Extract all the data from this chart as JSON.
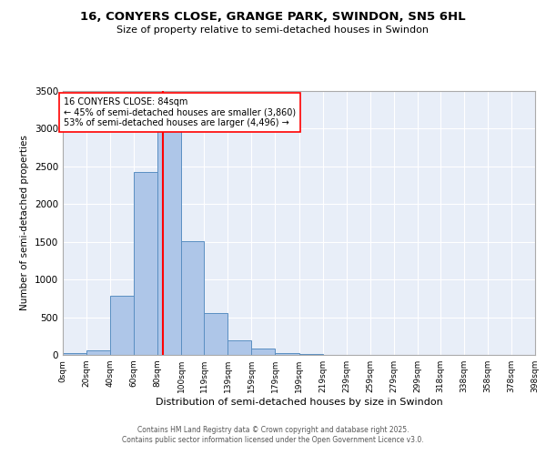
{
  "title_line1": "16, CONYERS CLOSE, GRANGE PARK, SWINDON, SN5 6HL",
  "title_line2": "Size of property relative to semi-detached houses in Swindon",
  "xlabel": "Distribution of semi-detached houses by size in Swindon",
  "ylabel": "Number of semi-detached properties",
  "bin_labels": [
    "0sqm",
    "20sqm",
    "40sqm",
    "60sqm",
    "80sqm",
    "100sqm",
    "119sqm",
    "139sqm",
    "159sqm",
    "179sqm",
    "199sqm",
    "219sqm",
    "239sqm",
    "259sqm",
    "279sqm",
    "299sqm",
    "318sqm",
    "338sqm",
    "358sqm",
    "378sqm",
    "398sqm"
  ],
  "bar_values": [
    20,
    60,
    780,
    2430,
    3000,
    1510,
    550,
    190,
    85,
    30,
    10,
    5,
    3,
    2,
    1,
    1,
    0,
    0,
    0,
    0
  ],
  "bin_edges": [
    0,
    20,
    40,
    60,
    80,
    100,
    119,
    139,
    159,
    179,
    199,
    219,
    239,
    259,
    279,
    299,
    318,
    338,
    358,
    378,
    398
  ],
  "bar_color": "#aec6e8",
  "bar_edge_color": "#5a8fc2",
  "red_line_x": 84,
  "annotation_title": "16 CONYERS CLOSE: 84sqm",
  "annotation_line1": "← 45% of semi-detached houses are smaller (3,860)",
  "annotation_line2": "53% of semi-detached houses are larger (4,496) →",
  "ylim": [
    0,
    3500
  ],
  "yticks": [
    0,
    500,
    1000,
    1500,
    2000,
    2500,
    3000,
    3500
  ],
  "xlim": [
    0,
    398
  ],
  "background_color": "#e8eef8",
  "grid_color": "#ffffff",
  "footer_line1": "Contains HM Land Registry data © Crown copyright and database right 2025.",
  "footer_line2": "Contains public sector information licensed under the Open Government Licence v3.0."
}
